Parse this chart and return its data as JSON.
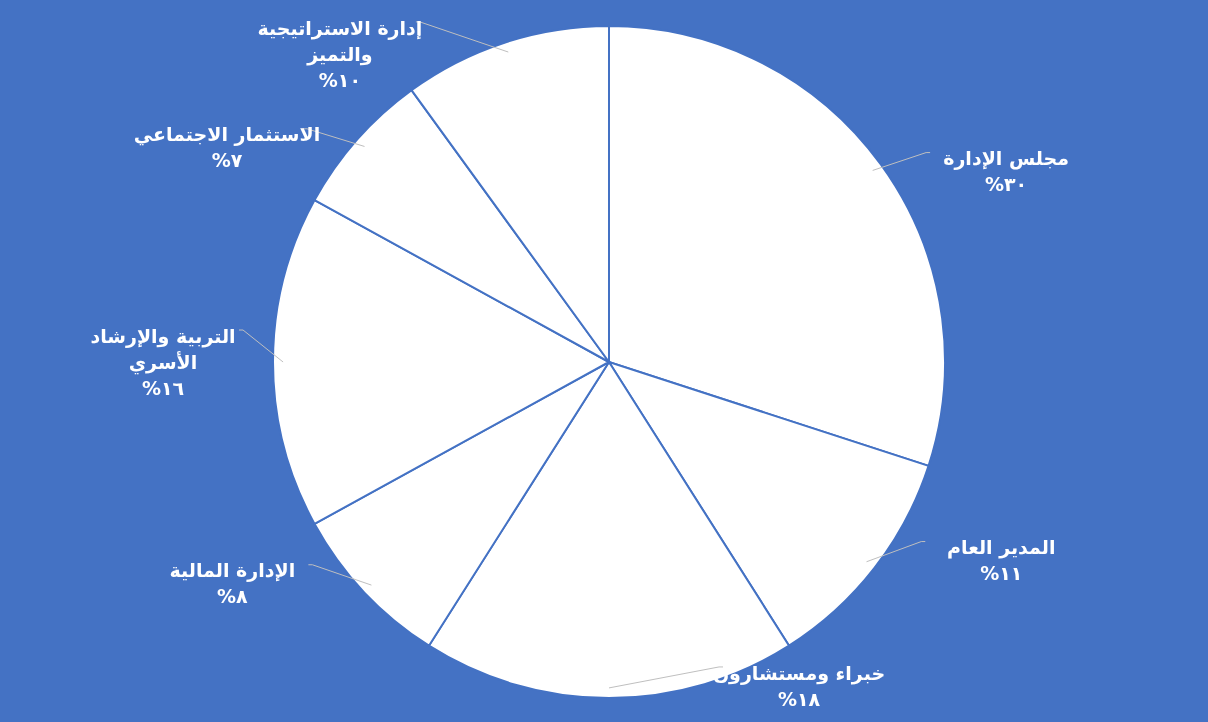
{
  "chart_data": {
    "type": "pie",
    "categories": [
      "مجلس الإدارة",
      "المدير العام",
      "خبراء ومستشارون",
      "الإدارة المالية",
      "التربية والإرشاد الأسري",
      "الاستثمار الاجتماعي",
      "إدارة الاستراتيجية والتميز"
    ],
    "values": [
      30,
      11,
      18,
      8,
      16,
      7,
      10
    ],
    "colors": [
      "#ffffff",
      "#ffffff",
      "#ffffff",
      "#ffffff",
      "#ffffff",
      "#ffffff",
      "#ffffff"
    ],
    "value_labels": [
      "٣٠%",
      "١١%",
      "١٨%",
      "٨%",
      "١٦%",
      "٧%",
      "١٠%"
    ]
  }
}
